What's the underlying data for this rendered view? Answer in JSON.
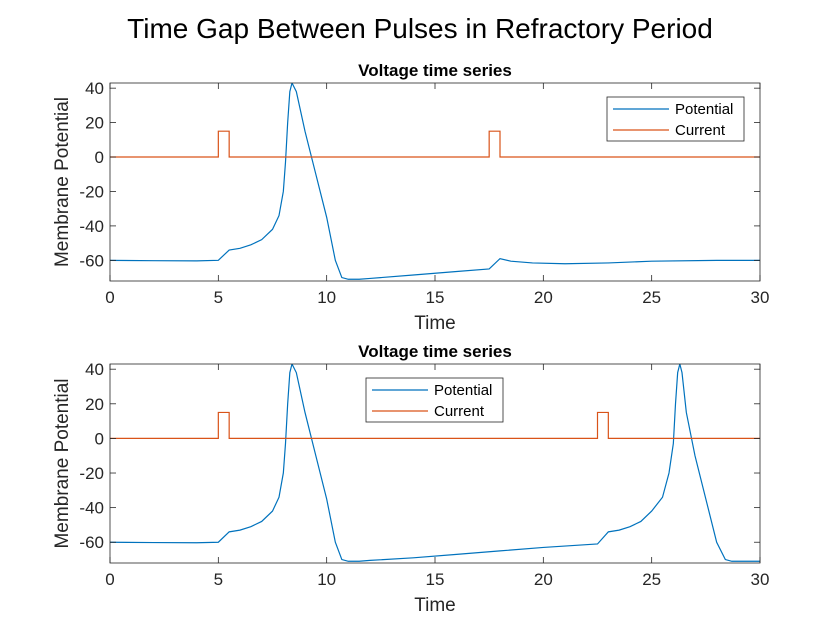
{
  "figure": {
    "title": "Time Gap Between Pulses in Refractory Period"
  },
  "colors": {
    "potential": "#0072BD",
    "current": "#D95319",
    "axes": "#262626",
    "background": "#ffffff"
  },
  "chart_data": [
    {
      "type": "line",
      "title": "Voltage time series",
      "xlabel": "Time",
      "ylabel": "Membrane Potential",
      "xlim": [
        0,
        30
      ],
      "ylim": [
        -72,
        43
      ],
      "xticks": [
        0,
        5,
        10,
        15,
        20,
        25,
        30
      ],
      "yticks": [
        -60,
        -40,
        -20,
        0,
        20,
        40
      ],
      "grid": false,
      "legend": "top-right",
      "series": [
        {
          "name": "Potential",
          "color_key": "potential",
          "x": [
            0,
            2,
            4,
            5,
            5.5,
            6,
            6.5,
            7,
            7.5,
            7.8,
            8.0,
            8.1,
            8.2,
            8.3,
            8.4,
            8.6,
            9.0,
            9.5,
            10.0,
            10.4,
            10.7,
            11.0,
            11.5,
            12,
            14,
            16,
            17.5,
            18.0,
            18.5,
            19.5,
            21,
            23,
            25,
            28,
            30
          ],
          "y": [
            -60,
            -60.2,
            -60.3,
            -60,
            -54,
            -53,
            -51,
            -48,
            -42,
            -34,
            -20,
            -3,
            20,
            38,
            43,
            38,
            15,
            -10,
            -35,
            -60,
            -70,
            -71,
            -71,
            -70.5,
            -68.5,
            -66.5,
            -65,
            -59,
            -60.5,
            -61.5,
            -62,
            -61.5,
            -60.5,
            -60,
            -60
          ]
        },
        {
          "name": "Current",
          "color_key": "current",
          "x": [
            0,
            5,
            5,
            5.5,
            5.5,
            17.5,
            17.5,
            18,
            18,
            30
          ],
          "y": [
            0,
            0,
            15,
            15,
            0,
            0,
            15,
            15,
            0,
            0
          ]
        }
      ]
    },
    {
      "type": "line",
      "title": "Voltage time series",
      "xlabel": "Time",
      "ylabel": "Membrane Potential",
      "xlim": [
        0,
        30
      ],
      "ylim": [
        -72,
        43
      ],
      "xticks": [
        0,
        5,
        10,
        15,
        20,
        25,
        30
      ],
      "yticks": [
        -60,
        -40,
        -20,
        0,
        20,
        40
      ],
      "grid": false,
      "legend": "top-center",
      "series": [
        {
          "name": "Potential",
          "color_key": "potential",
          "x": [
            0,
            2,
            4,
            5,
            5.5,
            6,
            6.5,
            7,
            7.5,
            7.8,
            8.0,
            8.1,
            8.2,
            8.3,
            8.4,
            8.6,
            9.0,
            9.5,
            10.0,
            10.4,
            10.7,
            11.0,
            11.5,
            12,
            14,
            16,
            18,
            20,
            22.5,
            23.0,
            23.5,
            24,
            24.5,
            25,
            25.5,
            25.8,
            26.0,
            26.1,
            26.2,
            26.3,
            26.4,
            26.6,
            27.0,
            27.5,
            28.0,
            28.4,
            28.7,
            29.0,
            29.5,
            30
          ],
          "y": [
            -60,
            -60.2,
            -60.3,
            -60,
            -54,
            -53,
            -51,
            -48,
            -42,
            -34,
            -20,
            -3,
            20,
            38,
            43,
            38,
            15,
            -10,
            -35,
            -60,
            -70,
            -71,
            -71,
            -70.5,
            -69,
            -67,
            -65,
            -63,
            -61,
            -54,
            -53,
            -51,
            -48,
            -42,
            -34,
            -20,
            -3,
            20,
            38,
            43,
            38,
            15,
            -10,
            -35,
            -60,
            -70,
            -71,
            -71,
            -71,
            -71
          ]
        },
        {
          "name": "Current",
          "color_key": "current",
          "x": [
            0,
            5,
            5,
            5.5,
            5.5,
            22.5,
            22.5,
            23,
            23,
            30
          ],
          "y": [
            0,
            0,
            15,
            15,
            0,
            0,
            15,
            15,
            0,
            0
          ]
        }
      ]
    }
  ]
}
